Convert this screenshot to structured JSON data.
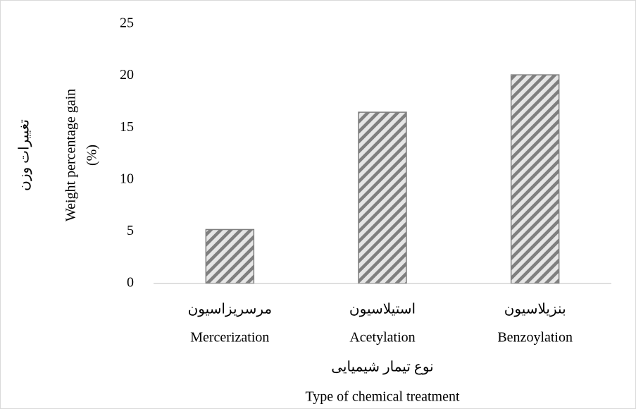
{
  "chart_data": {
    "type": "bar",
    "ylabel": [
      "تغییرات وزن",
      "Weight percentage gain",
      "(%)"
    ],
    "xlabel": [
      "نوع تیمار شیمیایی",
      "Type of chemical treatment"
    ],
    "categories": [
      "Mercerization",
      "Acetylation",
      "Benzoylation"
    ],
    "categories_local": [
      "مرسریزاسیون",
      "استیلاسیون",
      "بنزیلاسیون"
    ],
    "values": [
      5.2,
      16.5,
      20.1
    ],
    "color": "#7f7f7f",
    "ylim": [
      0,
      25
    ],
    "yticks": [
      0,
      5,
      10,
      15,
      20,
      25
    ],
    "grid": false
  }
}
